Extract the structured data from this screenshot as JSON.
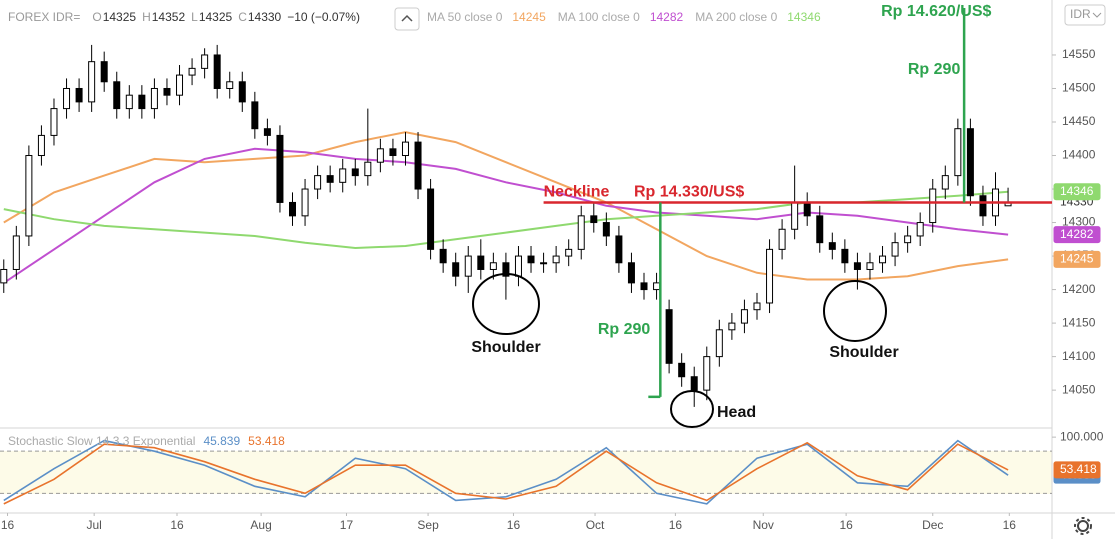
{
  "header": {
    "symbol": "FOREX IDR=",
    "o": "O",
    "h": "H",
    "l": "L",
    "c": "C",
    "change": "−10 (−0.07%)",
    "currency": "IDR"
  },
  "chart_data": {
    "type": "candlestick",
    "up_color": "#ffffff",
    "down_color": "#000000",
    "candles": {
      "open": [
        14210,
        14230,
        14280,
        14400,
        14430,
        14470,
        14500,
        14480,
        14540,
        14510,
        14470,
        14490,
        14470,
        14500,
        14490,
        14520,
        14530,
        14550,
        14500,
        14510,
        14480,
        14440,
        14430,
        14330,
        14310,
        14350,
        14370,
        14360,
        14380,
        14370,
        14390,
        14410,
        14400,
        14420,
        14350,
        14260,
        14240,
        14220,
        14250,
        14230,
        14240,
        14220,
        14250,
        14240,
        14240,
        14250,
        14260,
        14310,
        14300,
        14280,
        14240,
        14210,
        14200,
        14170,
        14090,
        14070,
        14050,
        14100,
        14140,
        14150,
        14170,
        14180,
        14260,
        14290,
        14330,
        14310,
        14270,
        14260,
        14240,
        14230,
        14240,
        14250,
        14270,
        14280,
        14300,
        14350,
        14370,
        14440,
        14340,
        14310,
        14325
      ],
      "high": [
        14245,
        14295,
        14415,
        14445,
        14485,
        14515,
        14515,
        14565,
        14555,
        14525,
        14505,
        14505,
        14515,
        14515,
        14535,
        14545,
        14560,
        14565,
        14525,
        14525,
        14495,
        14455,
        14445,
        14345,
        14365,
        14385,
        14385,
        14395,
        14395,
        14470,
        14425,
        14425,
        14435,
        14435,
        14365,
        14275,
        14255,
        14265,
        14275,
        14255,
        14255,
        14265,
        14265,
        14255,
        14265,
        14275,
        14325,
        14330,
        14315,
        14295,
        14255,
        14225,
        14225,
        14185,
        14105,
        14085,
        14115,
        14155,
        14165,
        14185,
        14195,
        14275,
        14305,
        14385,
        14345,
        14325,
        14285,
        14275,
        14255,
        14255,
        14265,
        14285,
        14295,
        14315,
        14365,
        14385,
        14455,
        14455,
        14355,
        14375,
        14352
      ],
      "low": [
        14195,
        14215,
        14265,
        14385,
        14415,
        14455,
        14465,
        14465,
        14495,
        14455,
        14455,
        14455,
        14455,
        14475,
        14475,
        14505,
        14515,
        14485,
        14485,
        14465,
        14425,
        14415,
        14315,
        14295,
        14295,
        14335,
        14345,
        14345,
        14355,
        14355,
        14375,
        14385,
        14385,
        14335,
        14245,
        14225,
        14205,
        14195,
        14215,
        14215,
        14185,
        14205,
        14225,
        14225,
        14225,
        14235,
        14245,
        14285,
        14265,
        14225,
        14195,
        14185,
        14185,
        14075,
        14055,
        14025,
        14035,
        14085,
        14125,
        14135,
        14155,
        14165,
        14245,
        14275,
        14295,
        14255,
        14245,
        14225,
        14200,
        14215,
        14225,
        14235,
        14255,
        14265,
        14285,
        14335,
        14355,
        14325,
        14295,
        14295,
        14325
      ],
      "close": [
        14230,
        14280,
        14400,
        14430,
        14470,
        14500,
        14480,
        14540,
        14510,
        14470,
        14490,
        14470,
        14500,
        14490,
        14520,
        14530,
        14550,
        14500,
        14510,
        14480,
        14440,
        14430,
        14330,
        14310,
        14350,
        14370,
        14360,
        14380,
        14370,
        14390,
        14410,
        14400,
        14420,
        14350,
        14260,
        14240,
        14220,
        14250,
        14230,
        14240,
        14220,
        14250,
        14240,
        14240,
        14250,
        14260,
        14310,
        14300,
        14280,
        14240,
        14210,
        14200,
        14210,
        14090,
        14070,
        14050,
        14100,
        14140,
        14150,
        14170,
        14180,
        14260,
        14290,
        14330,
        14310,
        14270,
        14260,
        14240,
        14230,
        14240,
        14250,
        14270,
        14280,
        14300,
        14350,
        14370,
        14440,
        14340,
        14310,
        14350,
        14330
      ]
    },
    "xlim": [
      -0.3,
      83.5
    ],
    "xticks": [
      {
        "value": 0.3,
        "label": "16"
      },
      {
        "value": 7.2,
        "label": "Jul"
      },
      {
        "value": 13.8,
        "label": "16"
      },
      {
        "value": 20.5,
        "label": "Aug"
      },
      {
        "value": 27.3,
        "label": "17"
      },
      {
        "value": 33.8,
        "label": "Sep"
      },
      {
        "value": 40.6,
        "label": "16"
      },
      {
        "value": 47.1,
        "label": "Oct"
      },
      {
        "value": 53.5,
        "label": "16"
      },
      {
        "value": 60.5,
        "label": "Nov"
      },
      {
        "value": 67.1,
        "label": "16"
      },
      {
        "value": 74,
        "label": "Dec"
      },
      {
        "value": 80.1,
        "label": "16"
      }
    ],
    "ylim": [
      13995,
      14632
    ],
    "yticks": [
      14050,
      14100,
      14150,
      14200,
      14250,
      14300,
      14350,
      14400,
      14450,
      14500,
      14550
    ],
    "grid": false,
    "ma": [
      {
        "name": "MA 50 close 0",
        "color": "#f2a660",
        "x": [
          0,
          4,
          8,
          12,
          16,
          20,
          24,
          28,
          32,
          36,
          40,
          44,
          48,
          52,
          56,
          60,
          64,
          68,
          72,
          76,
          80
        ],
        "values": [
          14300,
          14345,
          14370,
          14395,
          14390,
          14395,
          14400,
          14420,
          14435,
          14420,
          14390,
          14360,
          14330,
          14290,
          14250,
          14225,
          14215,
          14215,
          14220,
          14235,
          14245
        ]
      },
      {
        "name": "MA 100 close 0",
        "color": "#c04fd0",
        "x": [
          0,
          4,
          8,
          12,
          16,
          20,
          24,
          28,
          32,
          36,
          40,
          44,
          48,
          52,
          56,
          60,
          64,
          68,
          72,
          76,
          80
        ],
        "values": [
          14210,
          14260,
          14310,
          14360,
          14395,
          14410,
          14405,
          14395,
          14390,
          14380,
          14360,
          14345,
          14325,
          14315,
          14310,
          14305,
          14315,
          14310,
          14300,
          14290,
          14282
        ]
      },
      {
        "name": "MA 200 close 0",
        "color": "#8fd96f",
        "x": [
          0,
          4,
          8,
          12,
          16,
          20,
          24,
          28,
          32,
          36,
          40,
          44,
          48,
          52,
          56,
          60,
          64,
          68,
          72,
          76,
          80
        ],
        "values": [
          14320,
          14305,
          14295,
          14290,
          14285,
          14280,
          14270,
          14262,
          14265,
          14275,
          14285,
          14295,
          14305,
          14310,
          14315,
          14320,
          14330,
          14330,
          14335,
          14340,
          14346
        ]
      }
    ],
    "stochastic": {
      "title": "Stochastic Slow 14 3 3 Exponential",
      "ylim": [
        -8,
        113
      ],
      "yticks": [
        {
          "value": 100,
          "label": "100.000"
        }
      ],
      "bands": [
        20,
        80
      ],
      "x": [
        0,
        4,
        8,
        12,
        16,
        20,
        24,
        28,
        32,
        36,
        40,
        44,
        48,
        52,
        56,
        60,
        64,
        68,
        72,
        76,
        80
      ],
      "series": [
        {
          "color": "#5b8fc7",
          "values": [
            10,
            55,
            95,
            80,
            60,
            30,
            15,
            70,
            55,
            10,
            15,
            40,
            85,
            20,
            5,
            70,
            90,
            35,
            30,
            95,
            45.839
          ]
        },
        {
          "color": "#e8732c",
          "values": [
            5,
            40,
            90,
            85,
            65,
            40,
            20,
            60,
            60,
            20,
            12,
            30,
            80,
            35,
            10,
            55,
            92,
            45,
            25,
            90,
            53.418
          ]
        }
      ]
    },
    "neckline": {
      "value": 14330,
      "label": "Neckline",
      "price_label": "Rp 14.330/US$",
      "color": "#d9272e",
      "from_x": 43
    },
    "measures": [
      {
        "label": "Rp 290",
        "low": 14040,
        "high": 14330,
        "x": 52.3,
        "color": "#2ea44f"
      },
      {
        "label": "Rp 290",
        "low": 14330,
        "high": 14620,
        "x": 76.5,
        "color": "#2ea44f"
      }
    ],
    "target_label": "Rp 14.620/US$",
    "pattern_labels": [
      "Shoulder",
      "Head",
      "Shoulder"
    ]
  }
}
